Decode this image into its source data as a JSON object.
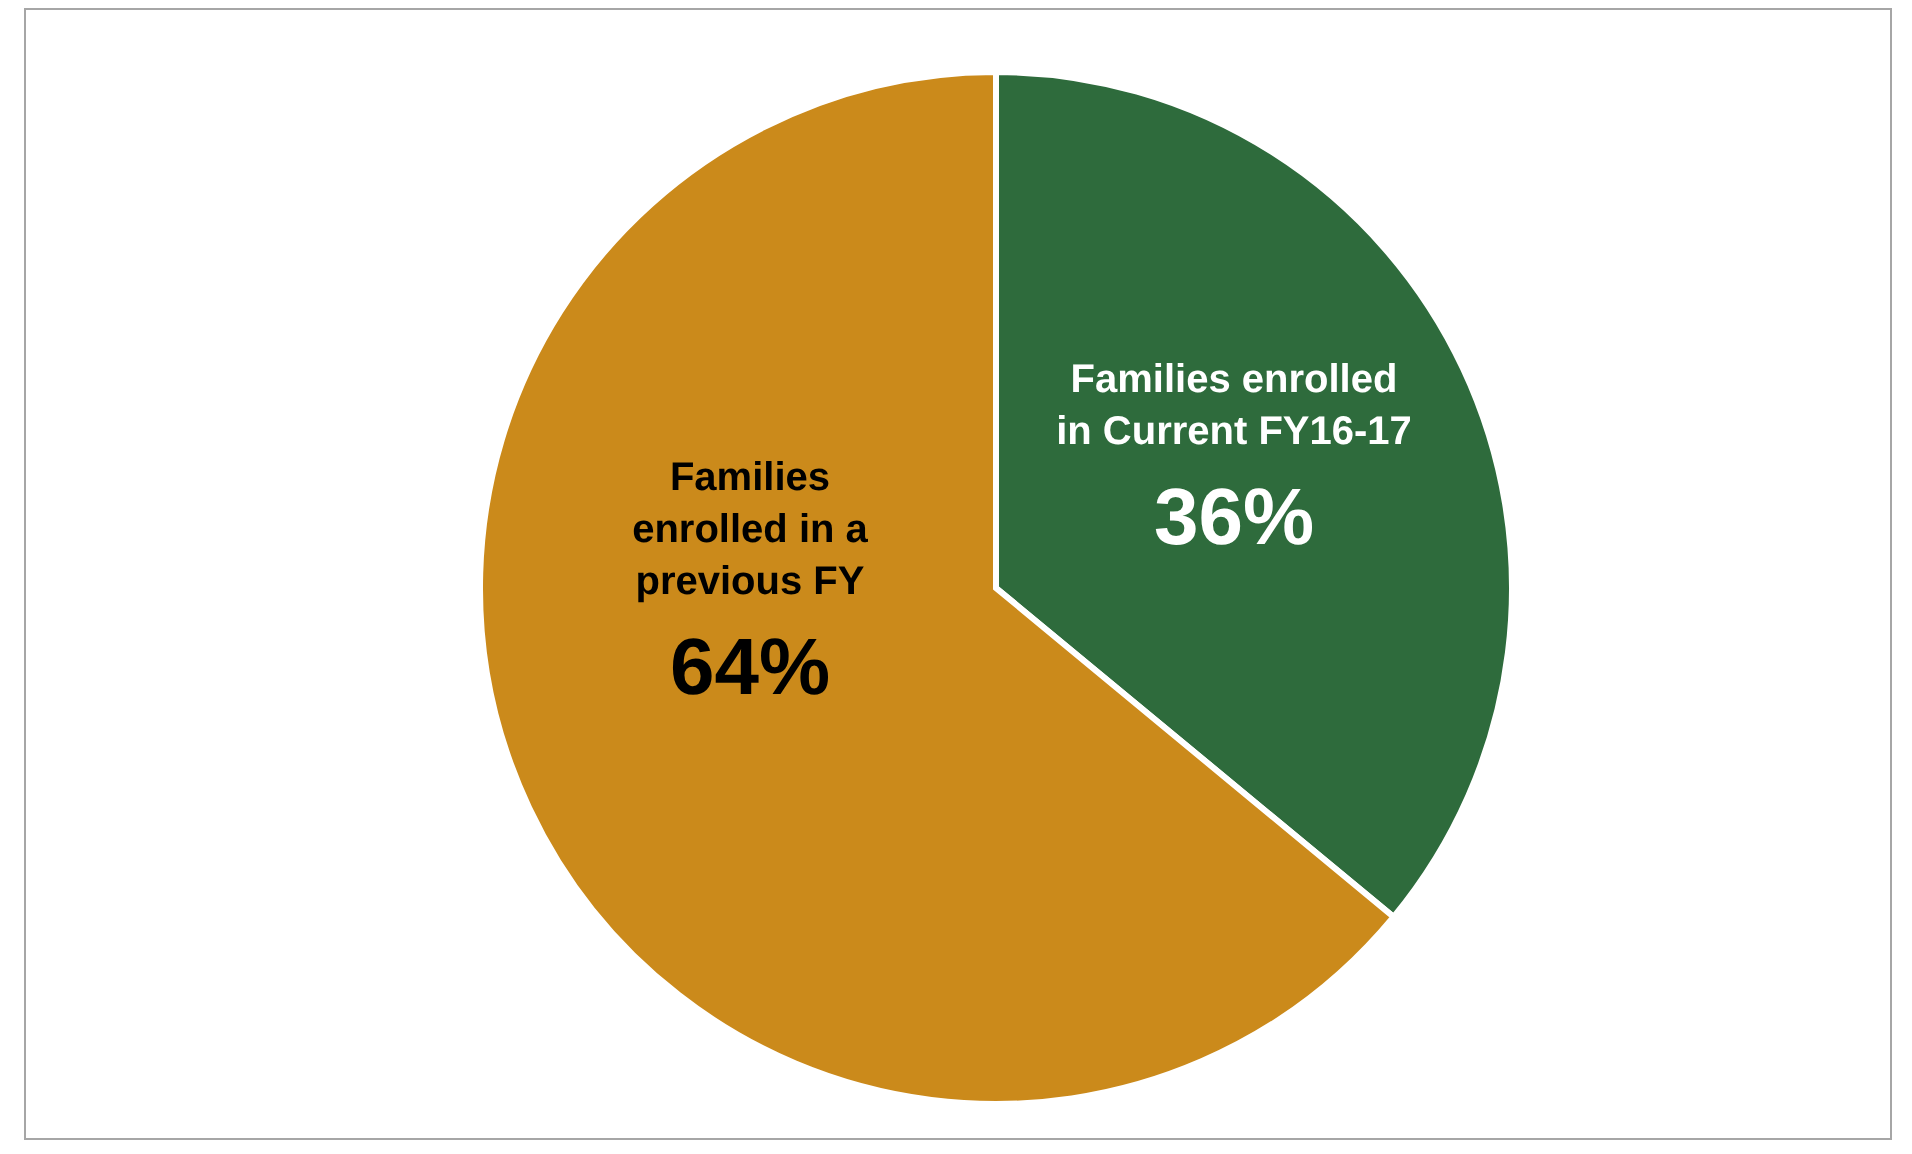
{
  "chart_data": {
    "type": "pie",
    "categories": [
      "Families enrolled in Current FY16-17",
      "Families enrolled in a previous FY"
    ],
    "values": [
      36,
      64
    ],
    "colors": [
      "#2e6b3c",
      "#cb8a1b"
    ],
    "value_labels": [
      "36%",
      "64%"
    ]
  }
}
